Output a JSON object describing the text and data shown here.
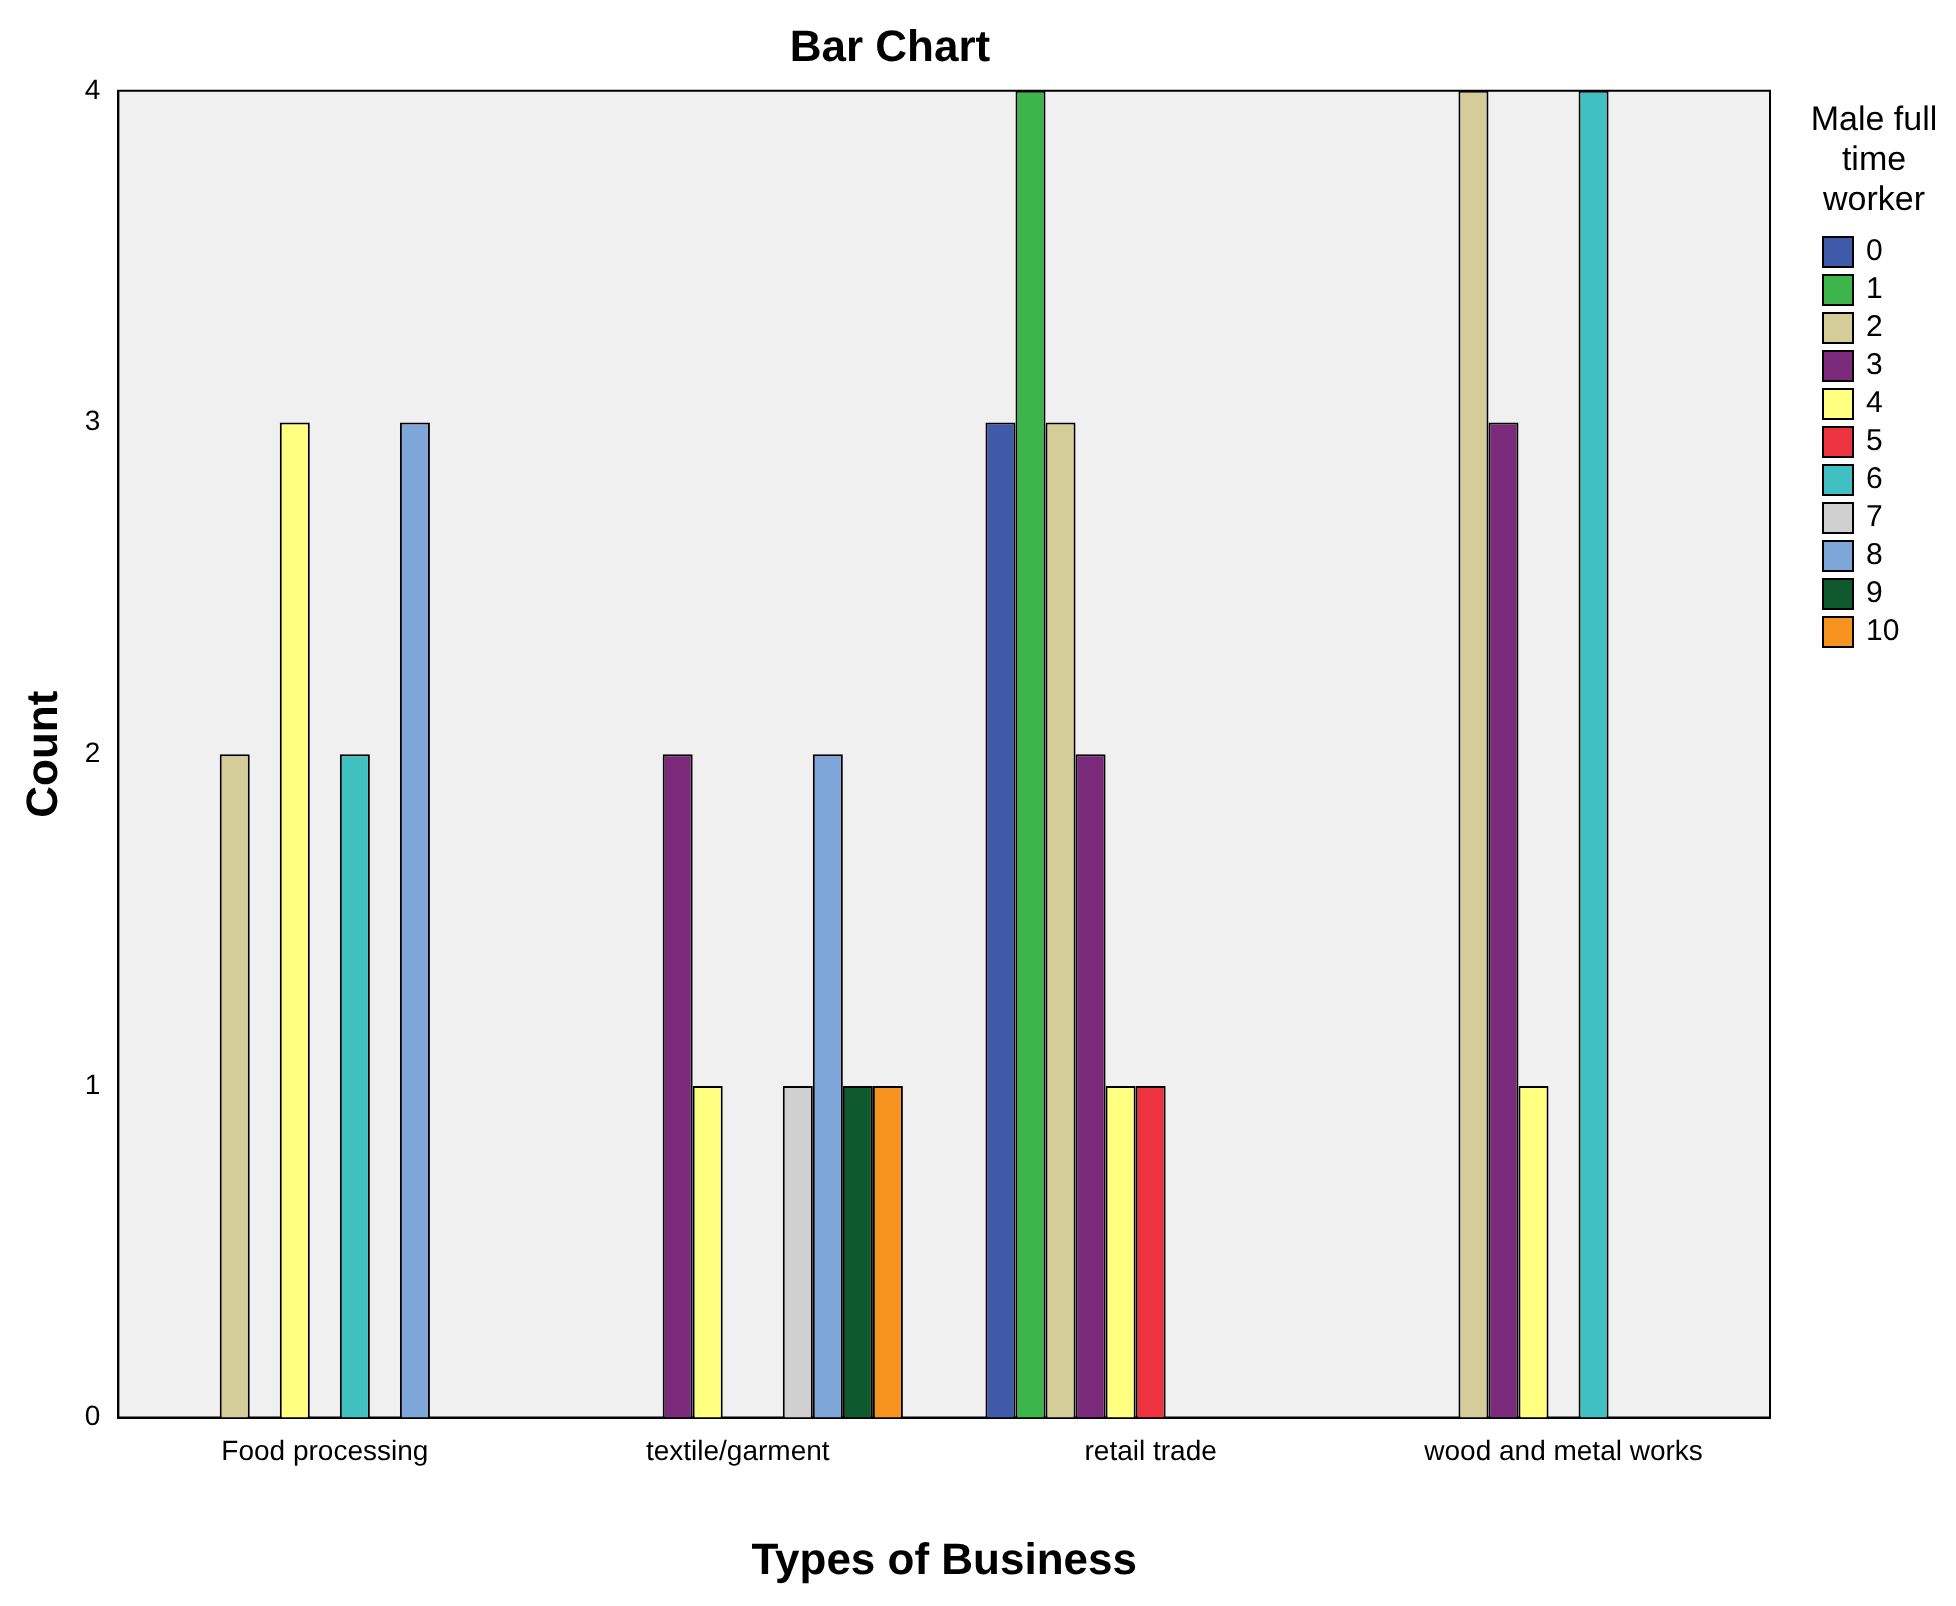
{
  "chart_data": {
    "type": "bar",
    "title": "Bar Chart",
    "xlabel": "Types of Business",
    "ylabel": "Count",
    "legend_title": "Male full time worker",
    "categories": [
      "Food processing",
      "textile/garment",
      "retail trade",
      "wood and metal works"
    ],
    "series": [
      {
        "name": "0",
        "color": "#3e5aa8",
        "values": [
          null,
          null,
          3,
          null
        ]
      },
      {
        "name": "1",
        "color": "#3cb54a",
        "values": [
          null,
          null,
          4,
          null
        ]
      },
      {
        "name": "2",
        "color": "#d4cc99",
        "values": [
          2,
          null,
          3,
          4
        ]
      },
      {
        "name": "3",
        "color": "#7b2a7b",
        "values": [
          null,
          2,
          2,
          3
        ]
      },
      {
        "name": "4",
        "color": "#ffff80",
        "values": [
          3,
          1,
          1,
          1
        ]
      },
      {
        "name": "5",
        "color": "#ee3340",
        "values": [
          null,
          null,
          1,
          null
        ]
      },
      {
        "name": "6",
        "color": "#40c0c0",
        "values": [
          2,
          null,
          null,
          4
        ]
      },
      {
        "name": "7",
        "color": "#d0d0d0",
        "values": [
          null,
          1,
          null,
          null
        ]
      },
      {
        "name": "8",
        "color": "#7ea6d8",
        "values": [
          3,
          2,
          null,
          null
        ]
      },
      {
        "name": "9",
        "color": "#0e5a2e",
        "values": [
          null,
          1,
          null,
          null
        ]
      },
      {
        "name": "10",
        "color": "#f79420",
        "values": [
          null,
          1,
          null,
          null
        ]
      }
    ],
    "ylim": [
      0,
      4
    ],
    "yticks": [
      0,
      1,
      2,
      3,
      4
    ],
    "grid": false,
    "legend": "right"
  }
}
